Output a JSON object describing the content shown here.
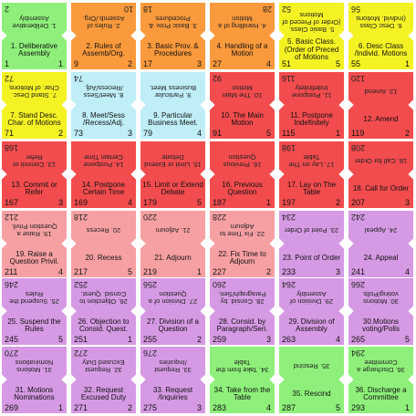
{
  "colors": {
    "green": "#8ef07a",
    "orange": "#fb9a3c",
    "yellow": "#f5f224",
    "lightblue": "#bfeef7",
    "red": "#f24c4e",
    "pink": "#f7a0a3",
    "violet": "#d69ae4"
  },
  "rows": [
    {
      "cards": [
        {
          "color": "green",
          "top": "1. Deliberative Assembly",
          "bottom": "1. Deliberative Assembly",
          "tl": "2",
          "tr": "",
          "bl": "1",
          "br": "1"
        },
        {
          "color": "orange",
          "top": "2. Rules of Assemb./Org.",
          "bottom": "2. Rules of Assemb/Org.",
          "tl": "",
          "tr": "10",
          "bl": "9",
          "br": "2"
        },
        {
          "color": "orange",
          "top": "3. Basic Prov. & Procedures",
          "bottom": "3. Basic Prov. & Procedures",
          "tl": "18",
          "tr": "",
          "bl": "17",
          "br": "3"
        },
        {
          "color": "orange",
          "top": "4. Handling of a Motion",
          "bottom": "4. Handling of a Motion",
          "tl": "",
          "tr": "28",
          "bl": "27",
          "br": "4"
        },
        {
          "color": "yellow",
          "top": "5. Basic Class. (Order of Preced of Motions",
          "bottom": "5. Basic Class. (Order of Preced of Motions",
          "tl": "52",
          "tr": "",
          "bl": "51",
          "br": "5"
        },
        {
          "color": "yellow",
          "top": "6. Desc Class (Individ. Motions",
          "bottom": "6. Desc Class /Individ. Motions",
          "tl": "56",
          "tr": "",
          "bl": "55",
          "br": "1"
        }
      ]
    },
    {
      "cards": [
        {
          "color": "yellow",
          "top": "7. Stand Desc. Char. of Motions",
          "bottom": "7. Stand Desc. Char. of Motions",
          "tl": "72",
          "tr": "",
          "bl": "71",
          "br": "2"
        },
        {
          "color": "lightblue",
          "top": "8. Meet/Sess /Recess/Adj.",
          "bottom": "8. Meet/Sess /Recess/Adj.",
          "tl": "74",
          "tr": "",
          "bl": "73",
          "br": "3"
        },
        {
          "color": "lightblue",
          "top": "9. Particular Business Meet.",
          "bottom": "9. Particular Business Meet.",
          "tl": "",
          "tr": "",
          "bl": "79",
          "br": "4"
        },
        {
          "color": "red",
          "top": "10. The Main Motion",
          "bottom": "10. The Main Motion",
          "tl": "92",
          "tr": "",
          "bl": "91",
          "br": "5"
        },
        {
          "color": "red",
          "top": "11. Postpone Indefinitely",
          "bottom": "11. Postpone Indefinitely",
          "tl": "116",
          "tr": "",
          "bl": "115",
          "br": "1"
        },
        {
          "color": "red",
          "top": "12. Amend",
          "bottom": "12. Amend",
          "tl": "120",
          "tr": "",
          "bl": "119",
          "br": "2"
        }
      ]
    },
    {
      "cards": [
        {
          "color": "red",
          "top": "13. Commit or Refer",
          "bottom": "13. Commit or Refer",
          "tl": "168",
          "tr": "",
          "bl": "167",
          "br": "3"
        },
        {
          "color": "red",
          "top": "14. Postpone Certain Time",
          "bottom": "14. Postpone Certain Time",
          "tl": "",
          "tr": "",
          "bl": "169",
          "br": "4"
        },
        {
          "color": "red",
          "top": "15. Limit or Extend Debate",
          "bottom": "15. Limit or Extend Debate",
          "tl": "",
          "tr": "",
          "bl": "179",
          "br": "5"
        },
        {
          "color": "red",
          "top": "16. Previous Question",
          "bottom": "16. Previous Question",
          "tl": "",
          "tr": "",
          "bl": "187",
          "br": "1"
        },
        {
          "color": "red",
          "top": "17. Lay on The Table",
          "bottom": "17. Lay on The Table",
          "tl": "198",
          "tr": "",
          "bl": "197",
          "br": "2"
        },
        {
          "color": "red",
          "top": "18. Call for Order",
          "bottom": "18. Call for Order",
          "tl": "208",
          "tr": "",
          "bl": "207",
          "br": "3"
        }
      ]
    },
    {
      "cards": [
        {
          "color": "pink",
          "top": "19. Raise a Question Privil.",
          "bottom": "19. Raise a Question Privil.",
          "tl": "212",
          "tr": "",
          "bl": "211",
          "br": "4"
        },
        {
          "color": "pink",
          "top": "20. Recess",
          "bottom": "20. Recess",
          "tl": "218",
          "tr": "",
          "bl": "217",
          "br": "5"
        },
        {
          "color": "pink",
          "top": "21. Adjourn",
          "bottom": "21. Adjourn",
          "tl": "220",
          "tr": "",
          "bl": "219",
          "br": "1"
        },
        {
          "color": "pink",
          "top": "22. Fix Time to Adjourn",
          "bottom": "22. Fix Time to Adjourn",
          "tl": "228",
          "tr": "",
          "bl": "227",
          "br": "2"
        },
        {
          "color": "violet",
          "top": "23. Point of Order",
          "bottom": "23. Point of Order",
          "tl": "234",
          "tr": "",
          "bl": "233",
          "br": "3"
        },
        {
          "color": "violet",
          "top": "24. Appeal",
          "bottom": "24. Appeal",
          "tl": "242",
          "tr": "",
          "bl": "241",
          "br": "4"
        }
      ]
    },
    {
      "cards": [
        {
          "color": "violet",
          "top": "25. Suspend the Rules",
          "bottom": "25. Suspend the Rules",
          "tl": "246",
          "tr": "",
          "bl": "245",
          "br": "5"
        },
        {
          "color": "violet",
          "top": "26. Objection to Consid. Quest.",
          "bottom": "26. Objection to Consid. Quest.",
          "tl": "252",
          "tr": "",
          "bl": "251",
          "br": "1"
        },
        {
          "color": "violet",
          "top": "27. Division of a Question",
          "bottom": "27. Division of a Question",
          "tl": "256",
          "tr": "",
          "bl": "255",
          "br": "2"
        },
        {
          "color": "violet",
          "top": "28. Consid. by Paragraph/Seri.",
          "bottom": "28. Consid. by Paragraph/Seri.",
          "tl": "260",
          "tr": "",
          "bl": "259",
          "br": "3"
        },
        {
          "color": "violet",
          "top": "29. Division of Assembly",
          "bottom": "29. Division of Assembly",
          "tl": "264",
          "tr": "",
          "bl": "263",
          "br": "4"
        },
        {
          "color": "violet",
          "top": "30. Motions voting/Polls",
          "bottom": "30.Motions voting/Polls",
          "tl": "266",
          "tr": "",
          "bl": "265",
          "br": "5"
        }
      ]
    },
    {
      "cards": [
        {
          "color": "violet",
          "top": "31. Motions Nominations",
          "bottom": "31. Motions Nominations",
          "tl": "270",
          "tr": "",
          "bl": "269",
          "br": "1"
        },
        {
          "color": "violet",
          "top": "32. Request Excused Duty",
          "bottom": "32. Request Excused Duty",
          "tl": "272",
          "tr": "",
          "bl": "271",
          "br": "2"
        },
        {
          "color": "violet",
          "top": "33. Request /Inquiries",
          "bottom": "33. Request /Inquiries",
          "tl": "276",
          "tr": "",
          "bl": "275",
          "br": "3"
        },
        {
          "color": "green",
          "top": "34. Take from the Table",
          "bottom": "34. Take from the Table",
          "tl": "",
          "tr": "",
          "bl": "283",
          "br": "4"
        },
        {
          "color": "green",
          "top": "35. Rescind",
          "bottom": "35. Rescind",
          "tl": "",
          "tr": "",
          "bl": "287",
          "br": "5"
        },
        {
          "color": "green",
          "top": "36. Discharge a Committee",
          "bottom": "36. Discharge a Committee",
          "tl": "294",
          "tr": "",
          "bl": "293",
          "br": "1"
        }
      ]
    }
  ]
}
